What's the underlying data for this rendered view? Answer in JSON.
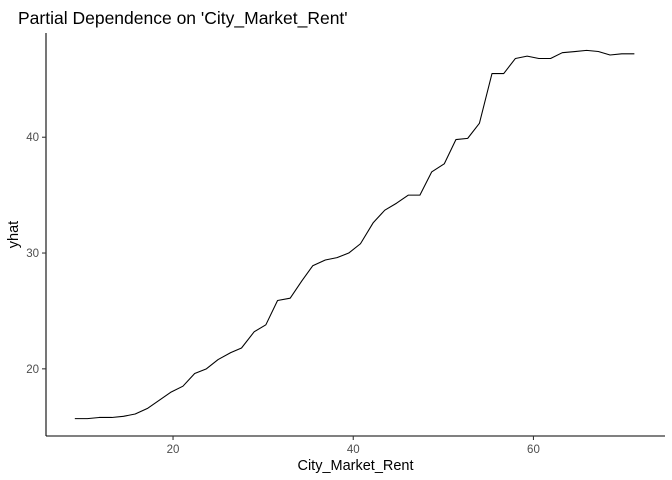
{
  "chart_data": {
    "type": "line",
    "title": "Partial Dependence on 'City_Market_Rent'",
    "xlabel": "City_Market_Rent",
    "ylabel": "yhat",
    "xlim": [
      5.9,
      74.6
    ],
    "ylim": [
      14.2,
      49.0
    ],
    "xticks": [
      20,
      40,
      60
    ],
    "yticks": [
      20,
      30,
      40
    ],
    "grid": false,
    "legend": "none",
    "line_color": "#000000",
    "x": [
      9.1,
      10.5,
      11.8,
      13.2,
      14.5,
      15.8,
      17.2,
      18.5,
      19.8,
      21.1,
      22.4,
      23.7,
      25.0,
      26.4,
      27.6,
      29.0,
      30.3,
      31.6,
      33.0,
      34.3,
      35.5,
      36.9,
      38.2,
      39.5,
      40.8,
      42.2,
      43.5,
      44.8,
      46.1,
      47.4,
      48.7,
      50.1,
      51.4,
      52.7,
      54.0,
      55.4,
      56.7,
      58.0,
      59.3,
      60.6,
      61.9,
      63.2,
      64.6,
      65.9,
      67.2,
      68.5,
      69.8,
      71.2
    ],
    "y": [
      15.7,
      15.7,
      15.8,
      15.8,
      15.9,
      16.1,
      16.6,
      17.3,
      18.0,
      18.5,
      19.6,
      20.0,
      20.8,
      21.4,
      21.8,
      23.2,
      23.8,
      25.9,
      26.1,
      27.6,
      28.9,
      29.4,
      29.6,
      30.0,
      30.8,
      32.6,
      33.7,
      34.3,
      35.0,
      35.0,
      37.0,
      37.7,
      39.8,
      39.9,
      41.2,
      45.5,
      45.5,
      46.8,
      47.0,
      46.8,
      46.8,
      47.3,
      47.4,
      47.5,
      47.4,
      47.1,
      47.2,
      47.2
    ]
  }
}
